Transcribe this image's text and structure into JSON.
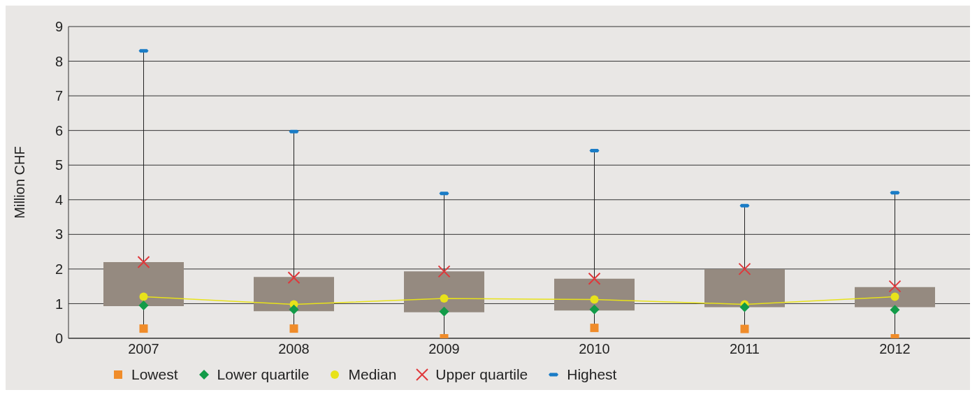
{
  "chart_data": {
    "type": "box",
    "ylabel": "Million CHF",
    "categories": [
      "2007",
      "2008",
      "2009",
      "2010",
      "2011",
      "2012"
    ],
    "ylim": [
      0,
      9
    ],
    "yticks": [
      0,
      1,
      2,
      3,
      4,
      5,
      6,
      7,
      8,
      9
    ],
    "grid": "y",
    "legend": "bottom left",
    "color": "#958a80",
    "boxes": [
      {
        "low": 0.28,
        "q1": 0.93,
        "q3": 2.2,
        "high": 8.3
      },
      {
        "low": 0.28,
        "q1": 0.78,
        "q3": 1.77,
        "high": 5.97
      },
      {
        "low": 0.0,
        "q1": 0.75,
        "q3": 1.93,
        "high": 4.18
      },
      {
        "low": 0.3,
        "q1": 0.8,
        "q3": 1.72,
        "high": 5.42
      },
      {
        "low": 0.27,
        "q1": 0.9,
        "q3": 2.0,
        "high": 3.83
      },
      {
        "low": 0.0,
        "q1": 0.9,
        "q3": 1.48,
        "high": 4.2
      }
    ],
    "series": [
      {
        "name": "Lowest",
        "type": "scatter",
        "marker": "square",
        "color": "#f08c2a",
        "values": [
          0.28,
          0.28,
          0.0,
          0.3,
          0.27,
          0.0
        ]
      },
      {
        "name": "Lower quartile",
        "type": "scatter",
        "marker": "diamond",
        "color": "#129b48",
        "values": [
          0.95,
          0.83,
          0.77,
          0.83,
          0.9,
          0.82
        ]
      },
      {
        "name": "Median",
        "type": "line",
        "marker": "circle",
        "color": "#e8e21a",
        "values": [
          1.2,
          0.98,
          1.15,
          1.12,
          0.98,
          1.2
        ]
      },
      {
        "name": "Upper quartile",
        "type": "scatter",
        "marker": "cross",
        "color": "#e0373a",
        "values": [
          2.2,
          1.75,
          1.93,
          1.72,
          2.0,
          1.5
        ]
      },
      {
        "name": "Highest",
        "type": "scatter",
        "color": "#1a7cc6",
        "values": [
          8.3,
          5.97,
          4.18,
          5.42,
          3.83,
          4.2
        ]
      }
    ]
  }
}
